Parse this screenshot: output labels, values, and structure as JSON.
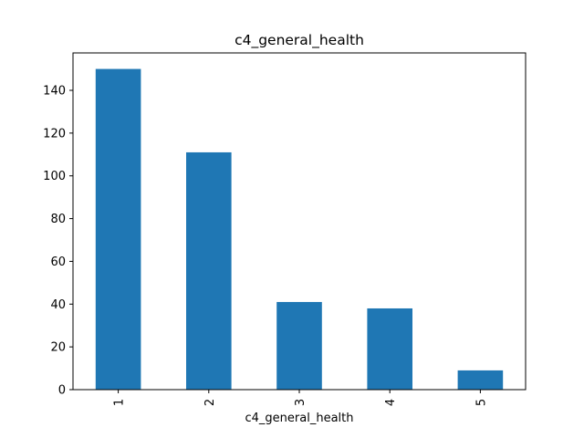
{
  "chart_data": {
    "type": "bar",
    "title": "c4_general_health",
    "xlabel": "c4_general_health",
    "ylabel": "",
    "categories": [
      "1",
      "2",
      "3",
      "4",
      "5"
    ],
    "values": [
      150,
      111,
      41,
      38,
      9
    ],
    "ylim": [
      0,
      157.5
    ],
    "yticks": [
      0,
      20,
      40,
      60,
      80,
      100,
      120,
      140
    ],
    "bar_color": "#1f77b4",
    "grid": false,
    "legend": "none"
  }
}
